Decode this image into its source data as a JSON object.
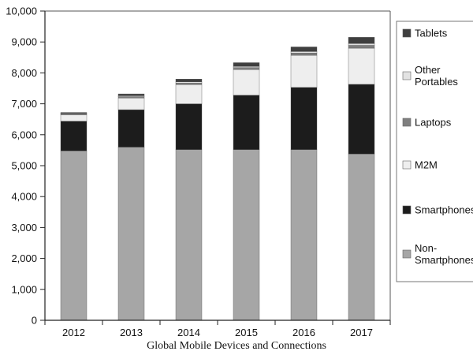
{
  "chart_data": {
    "type": "bar",
    "stacked": true,
    "title": "Global Mobile Devices and Connections",
    "xlabel": "",
    "ylabel": "",
    "ylim": [
      0,
      10000
    ],
    "y_ticks": [
      "0",
      "1,000",
      "2,000",
      "3,000",
      "4,000",
      "5,000",
      "6,000",
      "7,000",
      "8,000",
      "9,000",
      "10,000"
    ],
    "categories": [
      "2012",
      "2013",
      "2014",
      "2015",
      "2016",
      "2017"
    ],
    "series": [
      {
        "name": "Non-Smartphones",
        "legend_lines": [
          "Non-",
          "Smartphones"
        ],
        "color": "#a6a6a6",
        "values": [
          5480,
          5600,
          5520,
          5520,
          5520,
          5380
        ]
      },
      {
        "name": "Smartphones",
        "legend_lines": [
          "Smartphones"
        ],
        "color": "#1c1c1c",
        "values": [
          960,
          1210,
          1480,
          1760,
          2010,
          2250
        ]
      },
      {
        "name": "M2M",
        "legend_lines": [
          "M2M"
        ],
        "color": "#eeeeee",
        "values": [
          200,
          380,
          620,
          830,
          1040,
          1170
        ]
      },
      {
        "name": "Laptops",
        "legend_lines": [
          "Laptops"
        ],
        "color": "#7f7f7f",
        "values": [
          30,
          40,
          50,
          60,
          70,
          90
        ]
      },
      {
        "name": "Other Portables",
        "legend_lines": [
          "Other",
          "Portables"
        ],
        "color": "#e2e2e2",
        "values": [
          20,
          30,
          40,
          40,
          50,
          60
        ]
      },
      {
        "name": "Tablets",
        "legend_lines": [
          "Tablets"
        ],
        "color": "#3f3f3f",
        "values": [
          30,
          60,
          90,
          120,
          150,
          200
        ]
      }
    ],
    "legend_position": "right"
  },
  "caption": "Global Mobile Devices and Connections"
}
